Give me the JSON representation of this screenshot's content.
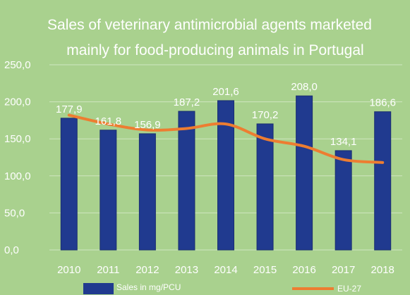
{
  "chart_data": {
    "type": "bar",
    "title_lines": [
      "Sales of veterinary antimicrobial agents marketed",
      "mainly for food-producing animals in Portugal"
    ],
    "categories": [
      "2010",
      "2011",
      "2012",
      "2013",
      "2014",
      "2015",
      "2016",
      "2017",
      "2018"
    ],
    "series": [
      {
        "name": "Sales in mg/PCU",
        "type": "bar",
        "color": "#203a8f",
        "values": [
          177.9,
          161.8,
          156.9,
          187.2,
          201.6,
          170.2,
          208.0,
          134.1,
          186.6
        ],
        "data_labels": [
          "177,9",
          "161,8",
          "156,9",
          "187,2",
          "201,6",
          "170,2",
          "208,0",
          "134,1",
          "186,6"
        ]
      },
      {
        "name": "EU-27",
        "type": "line",
        "smooth": true,
        "color": "#ed7d31",
        "values": [
          182,
          170,
          162,
          164,
          170,
          150,
          140,
          122,
          118
        ]
      }
    ],
    "y_ticks": [
      "0,0",
      "50,0",
      "100,0",
      "150,0",
      "200,0",
      "250,0"
    ],
    "ylim": [
      0,
      250
    ],
    "grid": true,
    "legend_position": "bottom"
  }
}
